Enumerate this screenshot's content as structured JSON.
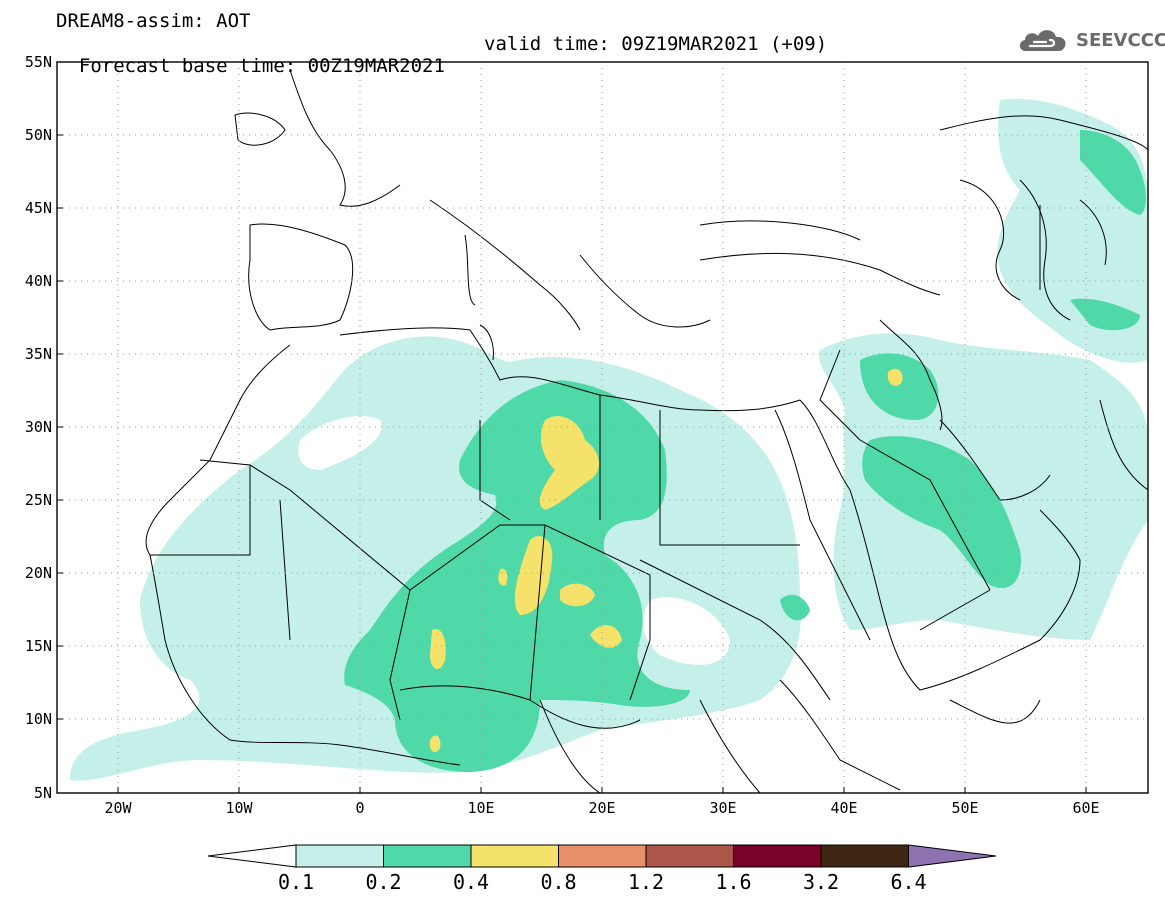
{
  "title": {
    "line1": "DREAM8-assim: AOT",
    "base": "Forecast base time: 00Z19MAR2021",
    "valid": "valid time: 09Z19MAR2021 (+09)"
  },
  "logo": {
    "text": "SEEVCCC",
    "icon": "cloud-icon"
  },
  "map": {
    "lon_range": [
      -25,
      65
    ],
    "lat_range": [
      5,
      55
    ],
    "lat_ticks": [
      "55N",
      "50N",
      "45N",
      "40N",
      "35N",
      "30N",
      "25N",
      "20N",
      "15N",
      "10N",
      "5N"
    ],
    "lon_ticks": [
      "20W",
      "10W",
      "0",
      "10E",
      "20E",
      "30E",
      "40E",
      "50E",
      "60E"
    ],
    "grid": true
  },
  "colorbar": {
    "labels": [
      "0.1",
      "0.2",
      "0.4",
      "0.8",
      "1.2",
      "1.6",
      "3.2",
      "6.4"
    ],
    "colors": [
      "#c5f0ea",
      "#4fd8a8",
      "#f5e26b",
      "#e9906a",
      "#ad5548",
      "#7a0228",
      "#3e2614",
      "#8f73b0"
    ]
  }
}
